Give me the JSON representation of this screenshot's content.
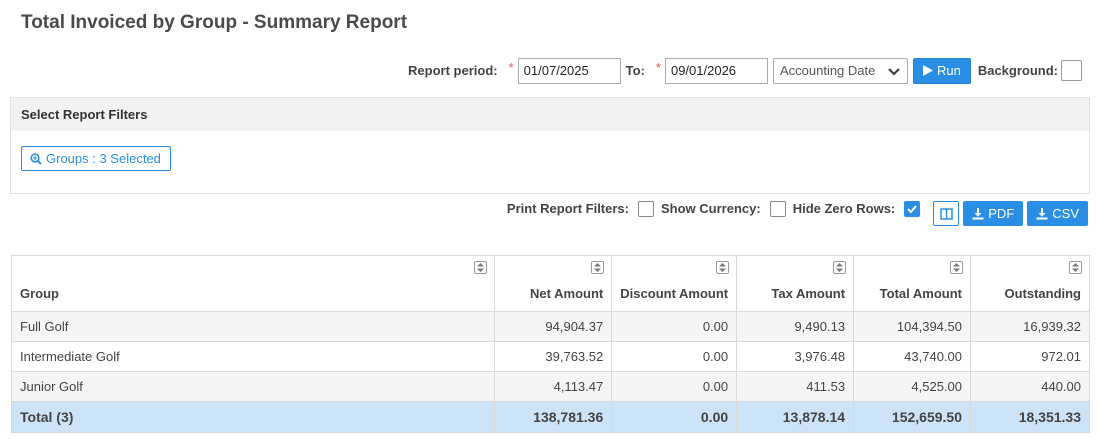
{
  "page": {
    "title": "Total Invoiced by Group - Summary Report"
  },
  "period": {
    "label": "Report period:",
    "required_mark": "*",
    "from": "01/07/2025",
    "to_label": "To:",
    "to": "09/01/2026",
    "date_type": "Accounting Date",
    "run_label": "Run",
    "background_label": "Background:"
  },
  "filters": {
    "header": "Select Report Filters",
    "groups_button": "Groups : 3 Selected"
  },
  "options": {
    "print_filters_label": "Print Report Filters:",
    "show_currency_label": "Show Currency:",
    "hide_zero_rows_label": "Hide Zero Rows:",
    "hide_zero_rows_checked": true,
    "pdf_label": "PDF",
    "csv_label": "CSV"
  },
  "table": {
    "columns": [
      "Group",
      "Net Amount",
      "Discount Amount",
      "Tax Amount",
      "Total Amount",
      "Outstanding"
    ],
    "rows": [
      [
        "Full Golf",
        "94,904.37",
        "0.00",
        "9,490.13",
        "104,394.50",
        "16,939.32"
      ],
      [
        "Intermediate Golf",
        "39,763.52",
        "0.00",
        "3,976.48",
        "43,740.00",
        "972.01"
      ],
      [
        "Junior Golf",
        "4,113.47",
        "0.00",
        "411.53",
        "4,525.00",
        "440.00"
      ]
    ],
    "total": [
      "Total (3)",
      "138,781.36",
      "0.00",
      "13,878.14",
      "152,659.50",
      "18,351.33"
    ]
  },
  "colors": {
    "accent": "#2b8ee5",
    "total_row": "#cde3f7",
    "required": "#d9534f"
  }
}
